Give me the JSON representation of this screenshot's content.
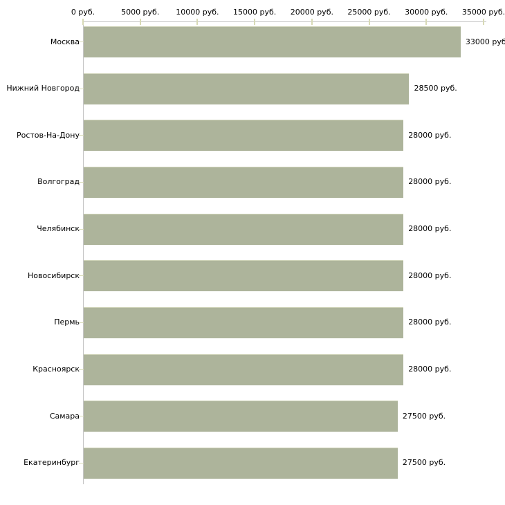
{
  "chart_data": {
    "type": "bar",
    "orientation": "horizontal",
    "title": "",
    "xlabel": "",
    "ylabel": "",
    "unit": "руб.",
    "categories": [
      "Москва",
      "Нижний Новгород",
      "Ростов-На-Дону",
      "Волгоград",
      "Челябинск",
      "Новосибирск",
      "Пермь",
      "Красноярск",
      "Самара",
      "Екатеринбург"
    ],
    "values": [
      33000,
      28500,
      28000,
      28000,
      28000,
      28000,
      28000,
      28000,
      27500,
      27500
    ],
    "value_labels": [
      "33000 руб",
      "28500 руб.",
      "28000 руб.",
      "28000 руб.",
      "28000 руб.",
      "28000 руб.",
      "28000 руб.",
      "28000 руб.",
      "27500 руб.",
      "27500 руб."
    ],
    "x_ticks": [
      0,
      5000,
      10000,
      15000,
      20000,
      25000,
      30000,
      35000
    ],
    "x_tick_labels": [
      "0 руб.",
      "5000 руб.",
      "10000 руб.",
      "15000 руб.",
      "20000 руб.",
      "25000 руб.",
      "30000 руб.",
      "35000 руб."
    ],
    "xlim": [
      0,
      35000
    ],
    "grid": "off",
    "legend": "none",
    "axis_position": "top",
    "colors": {
      "background": "#ffffff",
      "bar_fill": "#adb49b",
      "bar_edge": "#cfd3b8",
      "axis_line": "#c5c5c5",
      "tick_mark": "#d8dab6",
      "label_text": "#000000"
    }
  }
}
